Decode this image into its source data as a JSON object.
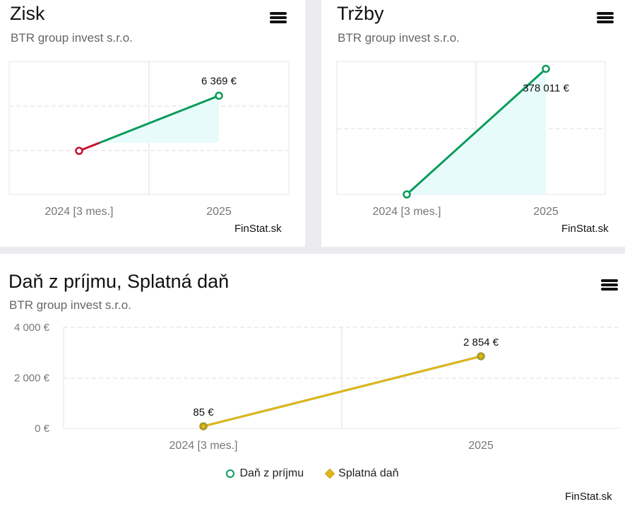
{
  "colors": {
    "grid": "#dcdcdc",
    "frame": "#e4e4e4",
    "green": "#0a9b5a",
    "red": "#c8102e",
    "area_fill": "#e8fbfb",
    "yellow": "#e2b51a",
    "axis_text": "#777777"
  },
  "menu_icon": "hamburger-menu-icon",
  "panels": [
    {
      "title": "Zisk",
      "subtitle": "BTR group invest s.r.o.",
      "credit": "FinStat.sk"
    },
    {
      "title": "Tržby",
      "subtitle": "BTR group invest s.r.o.",
      "credit": "FinStat.sk"
    },
    {
      "title": "Daň z príjmu, Splatná daň",
      "subtitle": "BTR group invest s.r.o.",
      "credit": "FinStat.sk",
      "legend": [
        "Daň z príjmu",
        "Splatná daň"
      ]
    }
  ],
  "chart_data": [
    {
      "type": "line",
      "title": "Zisk",
      "subtitle": "BTR group invest s.r.o.",
      "categories": [
        "2024 [3 mes.]",
        "2025"
      ],
      "series": [
        {
          "values": [
            -1100,
            6369
          ]
        }
      ],
      "data_labels": [
        "",
        "6 369 €"
      ],
      "first_segment_color": "red",
      "ylim": [
        -7000,
        11000
      ],
      "grid": true
    },
    {
      "type": "line",
      "title": "Tržby",
      "subtitle": "BTR group invest s.r.o.",
      "categories": [
        "2024 [3 mes.]",
        "2025"
      ],
      "series": [
        {
          "values": [
            0,
            378011
          ]
        }
      ],
      "data_labels": [
        "",
        "378 011 €"
      ],
      "ylim": [
        0,
        400000
      ],
      "grid": true
    },
    {
      "type": "line",
      "title": "Daň z príjmu, Splatná daň",
      "subtitle": "BTR group invest s.r.o.",
      "categories": [
        "2024 [3 mes.]",
        "2025"
      ],
      "series": [
        {
          "name": "Daň z príjmu",
          "values": [
            85,
            2854
          ]
        },
        {
          "name": "Splatná daň",
          "values": [
            85,
            2854
          ]
        }
      ],
      "data_labels": [
        "85 €",
        "2 854 €"
      ],
      "yticks": [
        "0 €",
        "2 000 €",
        "4 000 €"
      ],
      "ylim": [
        0,
        4000
      ],
      "legend": "bottom-center",
      "grid": true
    }
  ]
}
